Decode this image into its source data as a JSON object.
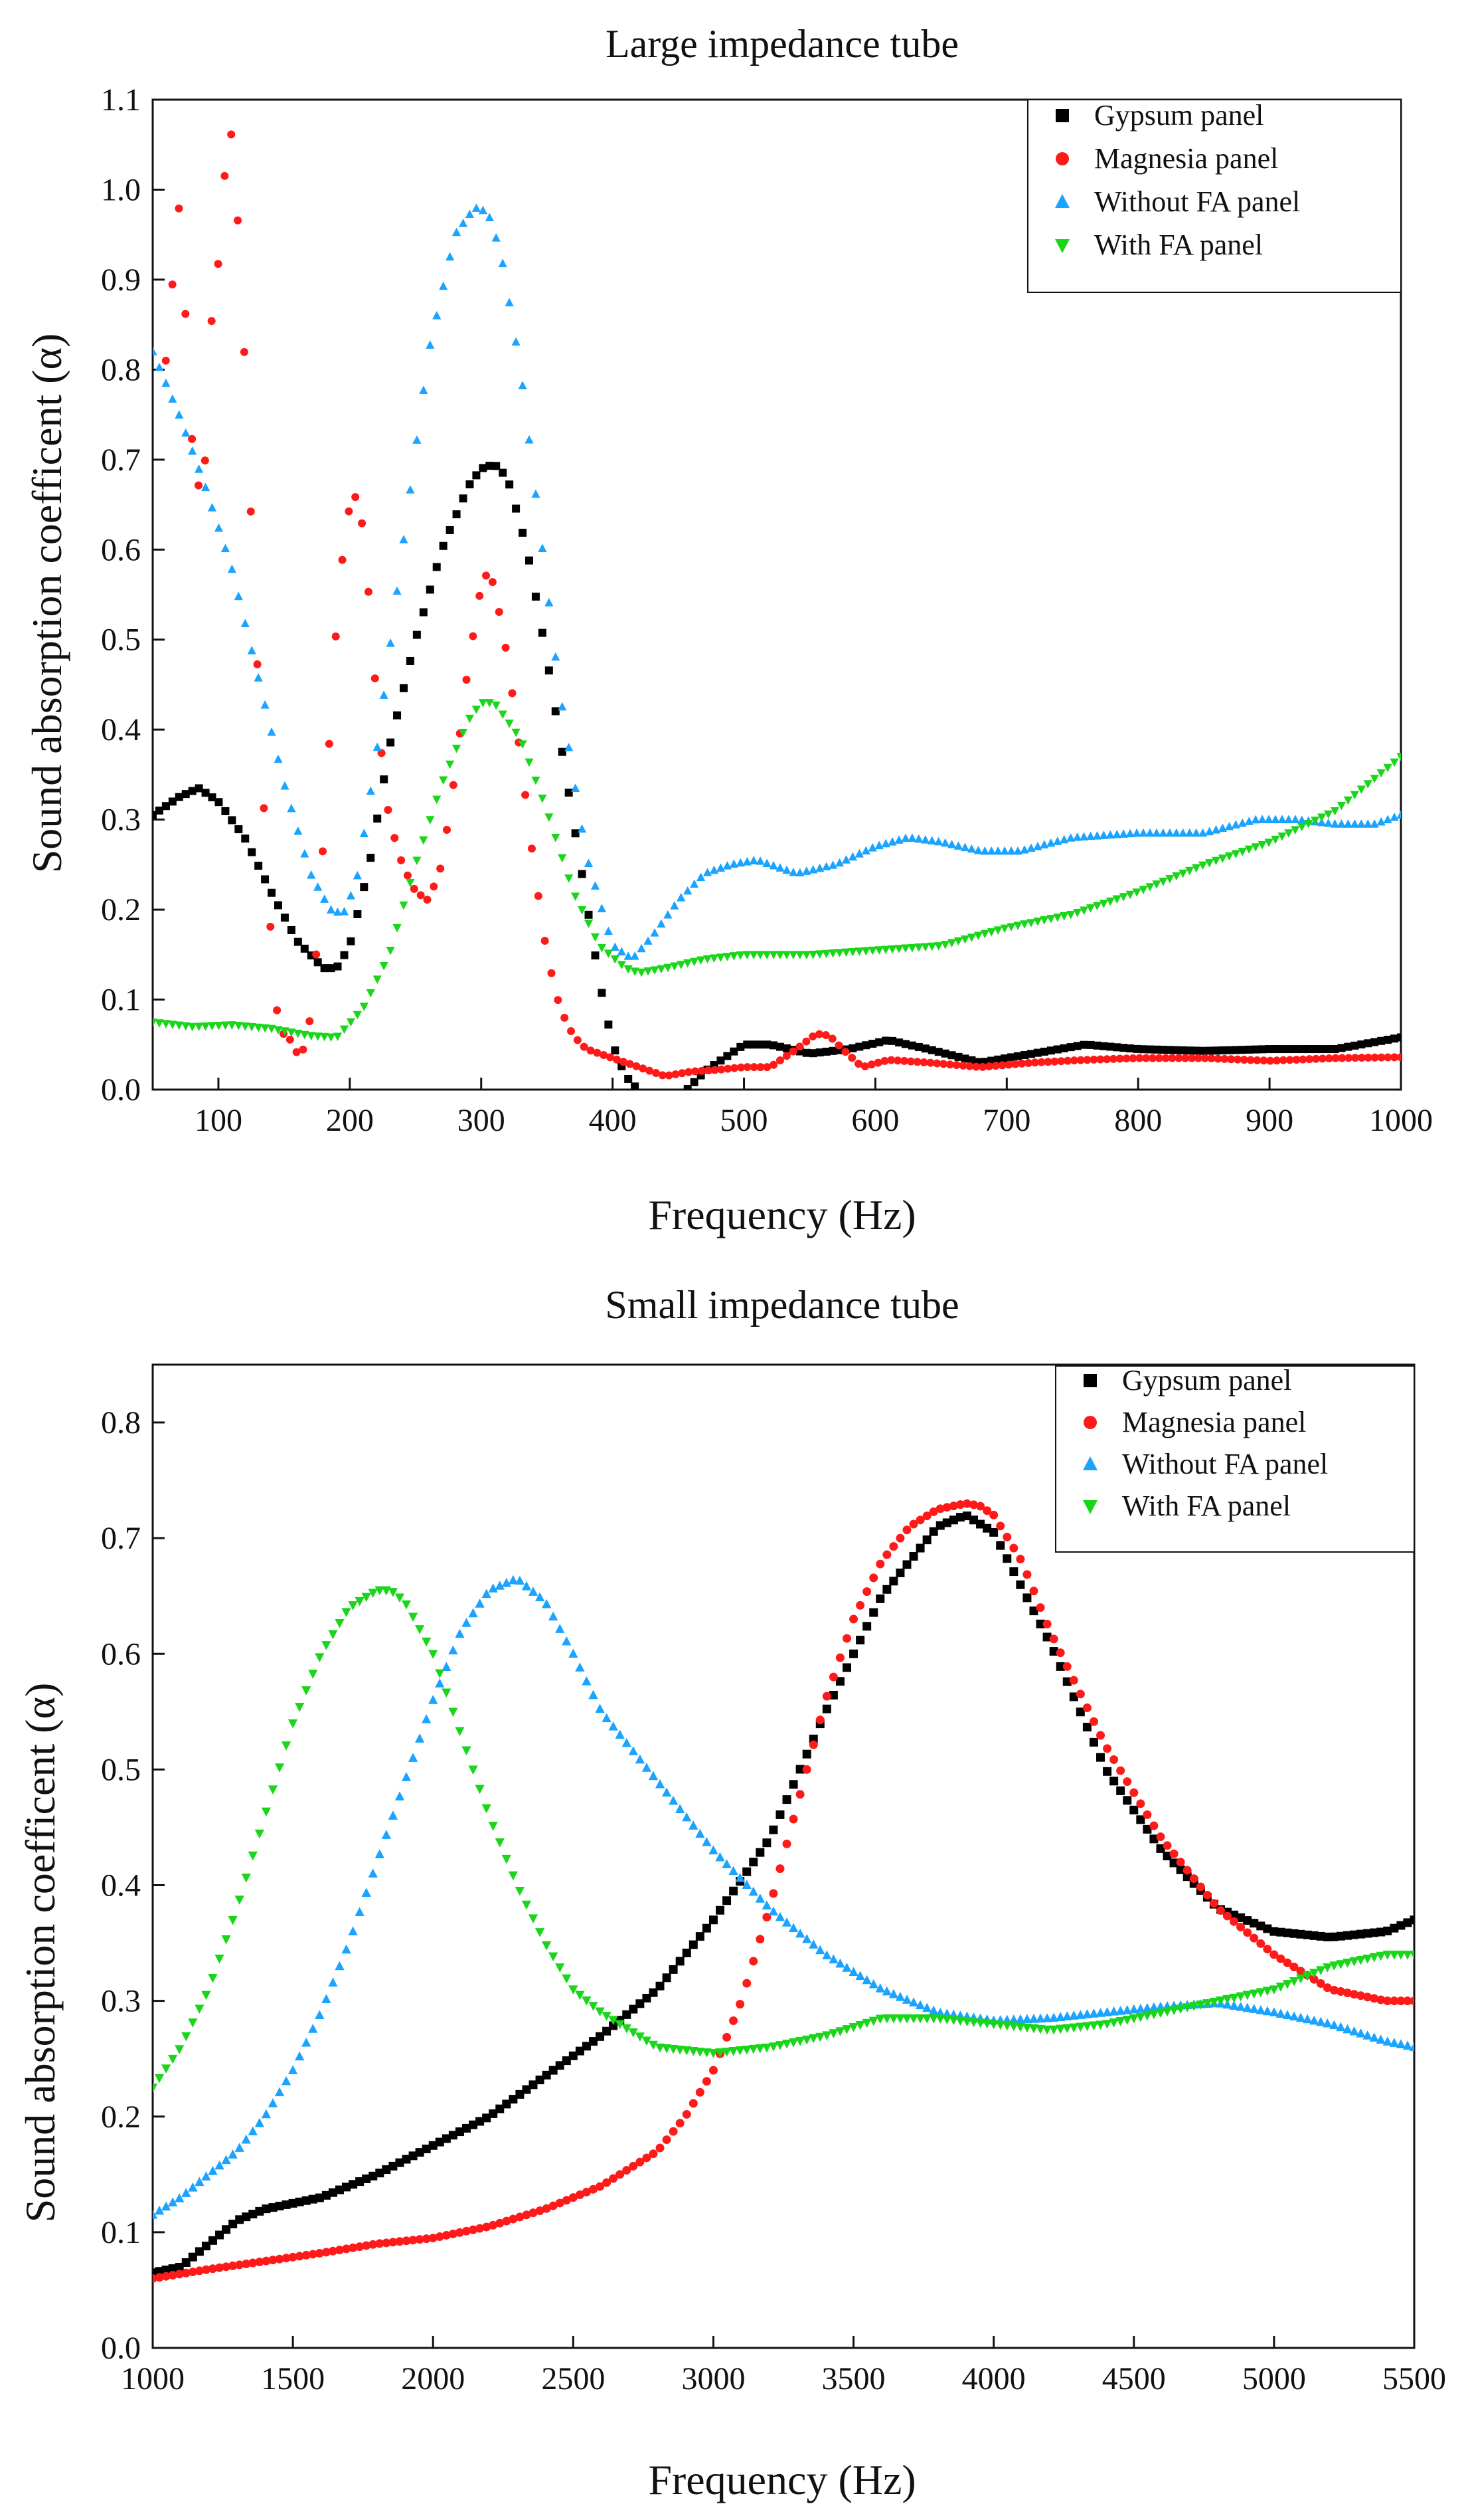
{
  "colors": {
    "gypsum": "#000000",
    "magnesia": "#ff1a1a",
    "without_fa": "#1aa3ff",
    "with_fa": "#1ad61a"
  },
  "chart_data": [
    {
      "type": "scatter",
      "title": "Large impedance tube",
      "xlabel": "Frequency (Hz)",
      "ylabel": "Sound absorption coefficent (α)",
      "xlim": [
        50,
        1000
      ],
      "ylim": [
        0.0,
        1.1
      ],
      "xticks": [
        100,
        200,
        300,
        400,
        500,
        600,
        700,
        800,
        900,
        1000
      ],
      "yticks": [
        0.0,
        0.1,
        0.2,
        0.3,
        0.4,
        0.5,
        0.6,
        0.7,
        0.8,
        0.9,
        1.0,
        1.1
      ],
      "xtick_labels": [
        "100",
        "200",
        "300",
        "400",
        "500",
        "600",
        "700",
        "800",
        "900",
        "1000"
      ],
      "ytick_labels": [
        "0.0",
        "0.1",
        "0.2",
        "0.3",
        "0.4",
        "0.5",
        "0.6",
        "0.7",
        "0.8",
        "0.9",
        "1.0",
        "1.1"
      ],
      "legend_position": "top-right",
      "series": [
        {
          "name": "Gypsum panel",
          "marker": "square",
          "color": "#000000",
          "x": [
            50,
            70,
            85,
            100,
            120,
            140,
            160,
            180,
            190,
            200,
            215,
            230,
            250,
            270,
            290,
            300,
            310,
            320,
            335,
            350,
            370,
            390,
            400,
            410,
            425,
            450,
            470,
            500,
            520,
            550,
            580,
            610,
            640,
            680,
            720,
            760,
            800,
            850,
            900,
            950,
            1000
          ],
          "y": [
            0.305,
            0.325,
            0.335,
            0.32,
            0.28,
            0.22,
            0.165,
            0.135,
            0.135,
            0.16,
            0.25,
            0.38,
            0.5,
            0.6,
            0.67,
            0.69,
            0.695,
            0.68,
            0.6,
            0.48,
            0.3,
            0.12,
            0.05,
            0.015,
            -0.01,
            -0.01,
            0.02,
            0.05,
            0.05,
            0.04,
            0.045,
            0.055,
            0.045,
            0.03,
            0.04,
            0.05,
            0.045,
            0.043,
            0.045,
            0.045,
            0.058
          ]
        },
        {
          "name": "Magnesia panel",
          "marker": "circle",
          "color": "#ff1a1a",
          "x": [
            60,
            70,
            75,
            80,
            85,
            90,
            95,
            100,
            105,
            108,
            110,
            115,
            120,
            125,
            130,
            135,
            140,
            145,
            150,
            155,
            160,
            165,
            170,
            175,
            180,
            185,
            190,
            195,
            200,
            203,
            207,
            210,
            215,
            220,
            225,
            230,
            240,
            250,
            260,
            270,
            280,
            290,
            300,
            305,
            310,
            320,
            330,
            340,
            350,
            360,
            370,
            380,
            400,
            420,
            440,
            460,
            480,
            500,
            520,
            540,
            555,
            565,
            575,
            590,
            610,
            640,
            680,
            720,
            760,
            800,
            850,
            900,
            950,
            1000
          ],
          "y": [
            0.81,
            0.98,
            0.86,
            0.72,
            0.67,
            0.7,
            0.86,
            0.92,
            1.02,
            1.07,
            1.06,
            0.96,
            0.81,
            0.63,
            0.46,
            0.3,
            0.17,
            0.08,
            0.06,
            0.055,
            0.04,
            0.045,
            0.08,
            0.16,
            0.28,
            0.4,
            0.52,
            0.6,
            0.65,
            0.66,
            0.655,
            0.62,
            0.54,
            0.44,
            0.36,
            0.3,
            0.25,
            0.22,
            0.21,
            0.25,
            0.35,
            0.47,
            0.56,
            0.575,
            0.56,
            0.48,
            0.37,
            0.25,
            0.15,
            0.09,
            0.06,
            0.045,
            0.035,
            0.025,
            0.015,
            0.02,
            0.022,
            0.025,
            0.025,
            0.045,
            0.062,
            0.06,
            0.045,
            0.025,
            0.033,
            0.03,
            0.025,
            0.03,
            0.033,
            0.035,
            0.035,
            0.032,
            0.035,
            0.036
          ]
        },
        {
          "name": "Without FA panel",
          "marker": "triangle-up",
          "color": "#1aa3ff",
          "x": [
            50,
            70,
            90,
            110,
            130,
            150,
            170,
            185,
            195,
            205,
            220,
            240,
            260,
            280,
            295,
            305,
            315,
            330,
            345,
            360,
            380,
            400,
            415,
            430,
            450,
            470,
            490,
            510,
            540,
            570,
            600,
            625,
            650,
            680,
            710,
            750,
            800,
            850,
            890,
            920,
            950,
            980,
            1000
          ],
          "y": [
            0.82,
            0.75,
            0.67,
            0.58,
            0.46,
            0.34,
            0.24,
            0.2,
            0.195,
            0.23,
            0.37,
            0.6,
            0.82,
            0.95,
            0.98,
            0.975,
            0.93,
            0.8,
            0.62,
            0.44,
            0.26,
            0.16,
            0.145,
            0.17,
            0.21,
            0.24,
            0.25,
            0.255,
            0.24,
            0.25,
            0.27,
            0.28,
            0.275,
            0.265,
            0.265,
            0.28,
            0.285,
            0.285,
            0.3,
            0.3,
            0.295,
            0.295,
            0.305
          ]
        },
        {
          "name": "With FA panel",
          "marker": "triangle-down",
          "color": "#1ad61a",
          "x": [
            50,
            80,
            110,
            140,
            170,
            190,
            210,
            230,
            250,
            270,
            290,
            300,
            310,
            330,
            350,
            370,
            390,
            410,
            420,
            440,
            470,
            500,
            550,
            600,
            650,
            700,
            750,
            800,
            850,
            900,
            950,
            1000
          ],
          "y": [
            0.075,
            0.07,
            0.072,
            0.068,
            0.06,
            0.058,
            0.09,
            0.15,
            0.25,
            0.34,
            0.41,
            0.43,
            0.43,
            0.39,
            0.31,
            0.22,
            0.16,
            0.135,
            0.13,
            0.135,
            0.145,
            0.15,
            0.15,
            0.155,
            0.16,
            0.18,
            0.195,
            0.22,
            0.25,
            0.275,
            0.31,
            0.37
          ]
        }
      ]
    },
    {
      "type": "scatter",
      "title": "Small impedance tube",
      "xlabel": "Frequency (Hz)",
      "ylabel": "Sound absorption coefficent (α)",
      "xlim": [
        1000,
        5500
      ],
      "ylim": [
        0.0,
        0.85
      ],
      "xticks": [
        1000,
        1500,
        2000,
        2500,
        3000,
        3500,
        4000,
        4500,
        5000,
        5500
      ],
      "yticks": [
        0.0,
        0.1,
        0.2,
        0.3,
        0.4,
        0.5,
        0.6,
        0.7,
        0.8
      ],
      "xtick_labels": [
        "1000",
        "1500",
        "2000",
        "2500",
        "3000",
        "3500",
        "4000",
        "4500",
        "5000",
        "5500"
      ],
      "ytick_labels": [
        "0.0",
        "0.1",
        "0.2",
        "0.3",
        "0.4",
        "0.5",
        "0.6",
        "0.7",
        "0.8"
      ],
      "legend_position": "top-right",
      "series": [
        {
          "name": "Gypsum panel",
          "marker": "square",
          "color": "#000000",
          "x": [
            1000,
            1100,
            1200,
            1300,
            1400,
            1500,
            1600,
            1700,
            1800,
            2000,
            2200,
            2400,
            2600,
            2800,
            3000,
            3200,
            3400,
            3600,
            3800,
            3900,
            4000,
            4200,
            4400,
            4600,
            4800,
            5000,
            5200,
            5400,
            5500
          ],
          "y": [
            0.065,
            0.07,
            0.09,
            0.11,
            0.12,
            0.125,
            0.13,
            0.14,
            0.15,
            0.175,
            0.2,
            0.235,
            0.27,
            0.31,
            0.37,
            0.44,
            0.55,
            0.65,
            0.71,
            0.72,
            0.705,
            0.61,
            0.5,
            0.43,
            0.38,
            0.36,
            0.355,
            0.36,
            0.37
          ]
        },
        {
          "name": "Magnesia panel",
          "marker": "circle",
          "color": "#ff1a1a",
          "x": [
            1000,
            1200,
            1400,
            1600,
            1800,
            2000,
            2200,
            2400,
            2600,
            2800,
            2900,
            3000,
            3100,
            3200,
            3300,
            3400,
            3500,
            3600,
            3700,
            3800,
            3900,
            3950,
            4000,
            4100,
            4200,
            4400,
            4600,
            4800,
            5000,
            5200,
            5400,
            5500
          ],
          "y": [
            0.06,
            0.068,
            0.075,
            0.082,
            0.09,
            0.095,
            0.105,
            0.12,
            0.14,
            0.17,
            0.2,
            0.24,
            0.3,
            0.38,
            0.47,
            0.56,
            0.63,
            0.68,
            0.71,
            0.725,
            0.73,
            0.728,
            0.72,
            0.68,
            0.62,
            0.52,
            0.44,
            0.38,
            0.34,
            0.31,
            0.3,
            0.3
          ]
        },
        {
          "name": "Without FA panel",
          "marker": "triangle-up",
          "color": "#1aa3ff",
          "x": [
            1000,
            1100,
            1200,
            1300,
            1400,
            1500,
            1600,
            1700,
            1800,
            1900,
            2000,
            2100,
            2200,
            2300,
            2400,
            2500,
            2600,
            2800,
            3000,
            3200,
            3400,
            3600,
            3800,
            4000,
            4200,
            4400,
            4600,
            4800,
            5000,
            5200,
            5400,
            5500
          ],
          "y": [
            0.115,
            0.13,
            0.15,
            0.17,
            0.2,
            0.24,
            0.29,
            0.35,
            0.42,
            0.49,
            0.56,
            0.62,
            0.655,
            0.665,
            0.645,
            0.6,
            0.55,
            0.49,
            0.43,
            0.38,
            0.34,
            0.31,
            0.29,
            0.283,
            0.285,
            0.29,
            0.295,
            0.298,
            0.29,
            0.28,
            0.265,
            0.26
          ]
        },
        {
          "name": "With FA panel",
          "marker": "triangle-down",
          "color": "#1ad61a",
          "x": [
            1000,
            1100,
            1200,
            1300,
            1400,
            1500,
            1600,
            1700,
            1800,
            1850,
            1900,
            2000,
            2100,
            2200,
            2300,
            2400,
            2500,
            2600,
            2800,
            3000,
            3200,
            3400,
            3600,
            3800,
            4000,
            4200,
            4400,
            4600,
            4800,
            5000,
            5200,
            5400,
            5500
          ],
          "y": [
            0.225,
            0.26,
            0.31,
            0.38,
            0.46,
            0.54,
            0.6,
            0.64,
            0.655,
            0.655,
            0.645,
            0.6,
            0.53,
            0.46,
            0.4,
            0.35,
            0.31,
            0.29,
            0.26,
            0.255,
            0.26,
            0.27,
            0.285,
            0.285,
            0.28,
            0.275,
            0.28,
            0.29,
            0.3,
            0.31,
            0.33,
            0.34,
            0.34
          ]
        }
      ]
    }
  ]
}
